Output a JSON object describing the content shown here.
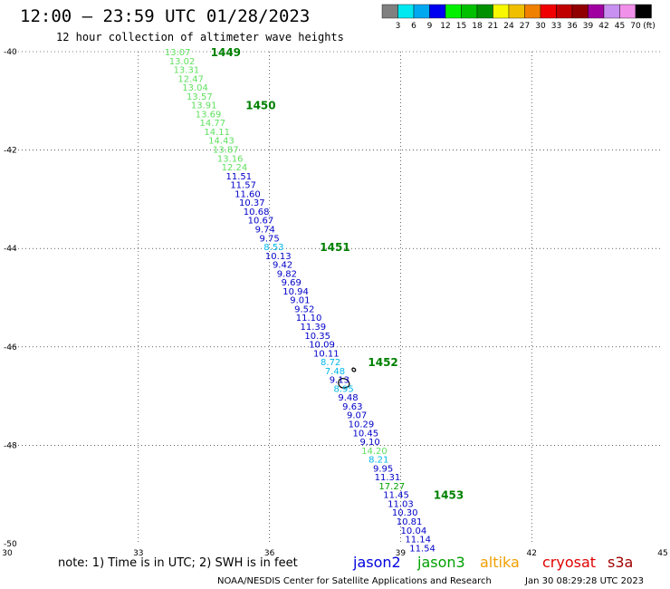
{
  "header": {
    "title": "12:00 — 23:59 UTC 01/28/2023",
    "subtitle": "12 hour collection of altimeter wave heights"
  },
  "color_legend": {
    "unit": "(ft)",
    "bins": [
      {
        "label": "3",
        "color": "#808080"
      },
      {
        "label": "6",
        "color": "#00e8f0"
      },
      {
        "label": "9",
        "color": "#00a8f0"
      },
      {
        "label": "12",
        "color": "#0000f0"
      },
      {
        "label": "15",
        "color": "#00f000"
      },
      {
        "label": "18",
        "color": "#00c000"
      },
      {
        "label": "21",
        "color": "#009000"
      },
      {
        "label": "24",
        "color": "#f8f800"
      },
      {
        "label": "27",
        "color": "#f0c000"
      },
      {
        "label": "30",
        "color": "#f08000"
      },
      {
        "label": "33",
        "color": "#f00000"
      },
      {
        "label": "36",
        "color": "#c00000"
      },
      {
        "label": "39",
        "color": "#900000"
      },
      {
        "label": "42",
        "color": "#a000a0"
      },
      {
        "label": "45",
        "color": "#c890f0"
      },
      {
        "label": "70",
        "color": "#f090e8"
      },
      {
        "label": "",
        "color": "#000000"
      }
    ]
  },
  "chart_data": {
    "type": "scatter",
    "x_ticks": [
      "30",
      "33",
      "36",
      "39",
      "42",
      "45"
    ],
    "y_ticks": [
      "-40",
      "-42",
      "-44",
      "-46",
      "-48",
      "-50"
    ],
    "xlim": [
      30,
      45
    ],
    "ylim": [
      -50,
      -40
    ],
    "grid": "dotted",
    "colors": {
      "jason2": "#0000c8",
      "jason3_light": "#60e060",
      "jason3_dark": "#00a000",
      "cyan": "#00b8e8"
    },
    "swh_points": [
      {
        "lon": 33.9,
        "lat": -40.0,
        "text": "13.07",
        "color": "#60e060"
      },
      {
        "lon": 34.0,
        "lat": -40.18,
        "text": "13.02",
        "color": "#60e060"
      },
      {
        "lon": 34.1,
        "lat": -40.36,
        "text": "13.31",
        "color": "#60e060"
      },
      {
        "lon": 34.2,
        "lat": -40.54,
        "text": "12.47",
        "color": "#60e060"
      },
      {
        "lon": 34.3,
        "lat": -40.72,
        "text": "13.04",
        "color": "#60e060"
      },
      {
        "lon": 34.4,
        "lat": -40.9,
        "text": "13.57",
        "color": "#60e060"
      },
      {
        "lon": 34.5,
        "lat": -41.08,
        "text": "13.91",
        "color": "#60e060"
      },
      {
        "lon": 34.6,
        "lat": -41.26,
        "text": "13.69",
        "color": "#60e060"
      },
      {
        "lon": 34.7,
        "lat": -41.44,
        "text": "14.77",
        "color": "#60e060"
      },
      {
        "lon": 34.8,
        "lat": -41.62,
        "text": "14.11",
        "color": "#60e060"
      },
      {
        "lon": 34.9,
        "lat": -41.8,
        "text": "14.43",
        "color": "#60e060"
      },
      {
        "lon": 35.0,
        "lat": -41.98,
        "text": "13.87",
        "color": "#60e060"
      },
      {
        "lon": 35.1,
        "lat": -42.16,
        "text": "13.16",
        "color": "#60e060"
      },
      {
        "lon": 35.2,
        "lat": -42.34,
        "text": "12.24",
        "color": "#60e060"
      },
      {
        "lon": 35.3,
        "lat": -42.52,
        "text": "11.51",
        "color": "#0000c8"
      },
      {
        "lon": 35.4,
        "lat": -42.7,
        "text": "11.57",
        "color": "#0000c8"
      },
      {
        "lon": 35.5,
        "lat": -42.88,
        "text": "11.60",
        "color": "#0000c8"
      },
      {
        "lon": 35.6,
        "lat": -43.06,
        "text": "10.37",
        "color": "#0000c8"
      },
      {
        "lon": 35.7,
        "lat": -43.24,
        "text": "10.68",
        "color": "#0000c8"
      },
      {
        "lon": 35.8,
        "lat": -43.42,
        "text": "10.67",
        "color": "#0000c8"
      },
      {
        "lon": 35.9,
        "lat": -43.6,
        "text": "9.74",
        "color": "#0000c8"
      },
      {
        "lon": 36.0,
        "lat": -43.78,
        "text": "9.75",
        "color": "#0000c8"
      },
      {
        "lon": 36.1,
        "lat": -43.96,
        "text": "8.53",
        "color": "#00b8e8"
      },
      {
        "lon": 36.2,
        "lat": -44.14,
        "text": "10.13",
        "color": "#0000c8"
      },
      {
        "lon": 36.3,
        "lat": -44.32,
        "text": "9.42",
        "color": "#0000c8"
      },
      {
        "lon": 36.4,
        "lat": -44.5,
        "text": "9.82",
        "color": "#0000c8"
      },
      {
        "lon": 36.5,
        "lat": -44.68,
        "text": "9.69",
        "color": "#0000c8"
      },
      {
        "lon": 36.6,
        "lat": -44.86,
        "text": "10.94",
        "color": "#0000c8"
      },
      {
        "lon": 36.7,
        "lat": -45.04,
        "text": "9.01",
        "color": "#0000c8"
      },
      {
        "lon": 36.8,
        "lat": -45.22,
        "text": "9.52",
        "color": "#0000c8"
      },
      {
        "lon": 36.9,
        "lat": -45.4,
        "text": "11.10",
        "color": "#0000c8"
      },
      {
        "lon": 37.0,
        "lat": -45.58,
        "text": "11.39",
        "color": "#0000c8"
      },
      {
        "lon": 37.1,
        "lat": -45.76,
        "text": "10.35",
        "color": "#0000c8"
      },
      {
        "lon": 37.2,
        "lat": -45.94,
        "text": "10.09",
        "color": "#0000c8"
      },
      {
        "lon": 37.3,
        "lat": -46.12,
        "text": "10.11",
        "color": "#0000c8"
      },
      {
        "lon": 37.4,
        "lat": -46.3,
        "text": "8.72",
        "color": "#00b8e8"
      },
      {
        "lon": 37.5,
        "lat": -46.48,
        "text": "7.48",
        "color": "#00b8e8"
      },
      {
        "lon": 37.6,
        "lat": -46.66,
        "text": "9.13",
        "color": "#0000c8"
      },
      {
        "lon": 37.7,
        "lat": -46.84,
        "text": "8.95",
        "color": "#00b8e8"
      },
      {
        "lon": 37.8,
        "lat": -47.02,
        "text": "9.48",
        "color": "#0000c8"
      },
      {
        "lon": 37.9,
        "lat": -47.2,
        "text": "9.63",
        "color": "#0000c8"
      },
      {
        "lon": 38.0,
        "lat": -47.38,
        "text": "9.07",
        "color": "#0000c8"
      },
      {
        "lon": 38.1,
        "lat": -47.56,
        "text": "10.29",
        "color": "#0000c8"
      },
      {
        "lon": 38.2,
        "lat": -47.74,
        "text": "10.45",
        "color": "#0000c8"
      },
      {
        "lon": 38.3,
        "lat": -47.92,
        "text": "9.10",
        "color": "#0000c8"
      },
      {
        "lon": 38.4,
        "lat": -48.1,
        "text": "14.20",
        "color": "#60e060"
      },
      {
        "lon": 38.5,
        "lat": -48.28,
        "text": "8.21",
        "color": "#00b8e8"
      },
      {
        "lon": 38.6,
        "lat": -48.46,
        "text": "9.95",
        "color": "#0000c8"
      },
      {
        "lon": 38.7,
        "lat": -48.64,
        "text": "11.31",
        "color": "#0000c8"
      },
      {
        "lon": 38.8,
        "lat": -48.82,
        "text": "17.27",
        "color": "#00a000"
      },
      {
        "lon": 38.9,
        "lat": -49.0,
        "text": "11.45",
        "color": "#0000c8"
      },
      {
        "lon": 39.0,
        "lat": -49.18,
        "text": "11.03",
        "color": "#0000c8"
      },
      {
        "lon": 39.1,
        "lat": -49.36,
        "text": "10.30",
        "color": "#0000c8"
      },
      {
        "lon": 39.2,
        "lat": -49.54,
        "text": "10.81",
        "color": "#0000c8"
      },
      {
        "lon": 39.3,
        "lat": -49.72,
        "text": "10.04",
        "color": "#0000c8"
      },
      {
        "lon": 39.4,
        "lat": -49.9,
        "text": "11.14",
        "color": "#0000c8"
      },
      {
        "lon": 39.5,
        "lat": -50.08,
        "text": "11.54",
        "color": "#0000c8"
      }
    ],
    "time_labels": [
      {
        "lon": 35.0,
        "lat": -40.0,
        "text": "1449"
      },
      {
        "lon": 35.8,
        "lat": -41.08,
        "text": "1450"
      },
      {
        "lon": 37.5,
        "lat": -43.96,
        "text": "1451"
      },
      {
        "lon": 38.6,
        "lat": -46.3,
        "text": "1452"
      },
      {
        "lon": 40.1,
        "lat": -49.0,
        "text": "1453"
      }
    ]
  },
  "satellites": [
    {
      "name": "jason2",
      "color": "#0000e0"
    },
    {
      "name": "jason3",
      "color": "#00a000"
    },
    {
      "name": "altika",
      "color": "#f0a000"
    },
    {
      "name": "cryosat",
      "color": "#e00000"
    },
    {
      "name": "s3a",
      "color": "#a00000"
    }
  ],
  "note": "note: 1) Time is in UTC; 2) SWH is in feet",
  "footer": {
    "source": "NOAA/NESDIS Center for Satellite Applications and Research",
    "timestamp": "Jan 30 08:29:28 UTC 2023"
  }
}
